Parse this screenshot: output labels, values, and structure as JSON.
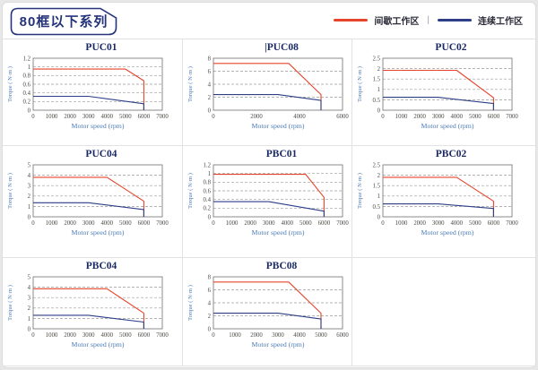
{
  "page": {
    "series_tag": "80框以下系列"
  },
  "legend": {
    "intermittent_label": "间歇工作区",
    "separator": "|",
    "continuous_label": "连续工作区",
    "intermittent_color": "#e5452b",
    "continuous_color": "#2c3f87"
  },
  "chart_data": [
    {
      "type": "line",
      "title": "PUC01",
      "xlabel": "Motor speed (rpm)",
      "ylabel": "Torque ( N·m )",
      "xlim": [
        0,
        7000
      ],
      "ylim": [
        0,
        1.2
      ],
      "xticks": [
        "0",
        "1000",
        "2000",
        "3000",
        "4000",
        "5000",
        "6000",
        "7000"
      ],
      "yticks": [
        "0",
        "0.2",
        "0.4",
        "0.6",
        "0.8",
        "1",
        "1.2"
      ],
      "grid": "dashed-horizontal",
      "legend_position": "none",
      "series": [
        {
          "name": "间歇工作区",
          "color": "#e5452b",
          "points": [
            [
              0,
              0.95
            ],
            [
              5000,
              0.95
            ],
            [
              6000,
              0.68
            ],
            [
              6000,
              0
            ]
          ]
        },
        {
          "name": "连续工作区",
          "color": "#2c3f87",
          "points": [
            [
              0,
              0.32
            ],
            [
              3000,
              0.32
            ],
            [
              6000,
              0.15
            ],
            [
              6000,
              0
            ]
          ]
        }
      ]
    },
    {
      "type": "line",
      "title": "PUC08",
      "cursor_bar": "|",
      "xlabel": "Motor speed (rpm)",
      "ylabel": "Torque ( N·m )",
      "xlim": [
        0,
        6000
      ],
      "ylim": [
        0,
        8
      ],
      "xticks": [
        "0",
        "2000",
        "4000",
        "6000"
      ],
      "yticks": [
        "0",
        "2",
        "4",
        "6",
        "8"
      ],
      "grid": "dashed-horizontal",
      "legend_position": "none",
      "series": [
        {
          "name": "间歇工作区",
          "color": "#e5452b",
          "points": [
            [
              0,
              7.2
            ],
            [
              3500,
              7.2
            ],
            [
              5000,
              2.4
            ],
            [
              5000,
              0
            ]
          ]
        },
        {
          "name": "连续工作区",
          "color": "#2c3f87",
          "points": [
            [
              0,
              2.4
            ],
            [
              3000,
              2.4
            ],
            [
              5000,
              1.5
            ],
            [
              5000,
              0
            ]
          ]
        }
      ]
    },
    {
      "type": "line",
      "title": "PUC02",
      "xlabel": "Motor speed (rpm)",
      "ylabel": "Torque ( N·m )",
      "xlim": [
        0,
        7000
      ],
      "ylim": [
        0,
        2.5
      ],
      "xticks": [
        "0",
        "1000",
        "2000",
        "3000",
        "4000",
        "5000",
        "6000",
        "7000"
      ],
      "yticks": [
        "0",
        "0.5",
        "1",
        "1.5",
        "2",
        "2.5"
      ],
      "grid": "dashed-horizontal",
      "legend_position": "none",
      "series": [
        {
          "name": "间歇工作区",
          "color": "#e5452b",
          "points": [
            [
              0,
              1.92
            ],
            [
              4000,
              1.92
            ],
            [
              6000,
              0.6
            ],
            [
              6000,
              0
            ]
          ]
        },
        {
          "name": "连续工作区",
          "color": "#2c3f87",
          "points": [
            [
              0,
              0.62
            ],
            [
              3000,
              0.62
            ],
            [
              6000,
              0.32
            ],
            [
              6000,
              0
            ]
          ]
        }
      ]
    },
    {
      "type": "line",
      "title": "PUC04",
      "xlabel": "Motor speed (rpm)",
      "ylabel": "Torque ( N·m )",
      "xlim": [
        0,
        7000
      ],
      "ylim": [
        0,
        5
      ],
      "xticks": [
        "0",
        "1000",
        "2000",
        "3000",
        "4000",
        "5000",
        "6000",
        "7000"
      ],
      "yticks": [
        "0",
        "1",
        "2",
        "3",
        "4",
        "5"
      ],
      "grid": "dashed-horizontal",
      "legend_position": "none",
      "series": [
        {
          "name": "间歇工作区",
          "color": "#e5452b",
          "points": [
            [
              0,
              3.8
            ],
            [
              4000,
              3.8
            ],
            [
              6000,
              1.5
            ],
            [
              6000,
              0
            ]
          ]
        },
        {
          "name": "连续工作区",
          "color": "#2c3f87",
          "points": [
            [
              0,
              1.35
            ],
            [
              3000,
              1.35
            ],
            [
              6000,
              0.7
            ],
            [
              6000,
              0
            ]
          ]
        }
      ]
    },
    {
      "type": "line",
      "title": "PBC01",
      "xlabel": "Motor speed (rpm)",
      "ylabel": "Torque ( N·m )",
      "xlim": [
        0,
        7000
      ],
      "ylim": [
        0,
        1.2
      ],
      "xticks": [
        "0",
        "1000",
        "2000",
        "3000",
        "4000",
        "5000",
        "6000",
        "7000"
      ],
      "yticks": [
        "0",
        "0.2",
        "0.4",
        "0.6",
        "0.8",
        "1",
        "1.2"
      ],
      "grid": "dashed-horizontal",
      "legend_position": "none",
      "series": [
        {
          "name": "间歇工作区",
          "color": "#e5452b",
          "points": [
            [
              0,
              0.98
            ],
            [
              5000,
              0.98
            ],
            [
              6000,
              0.45
            ],
            [
              6000,
              0
            ]
          ]
        },
        {
          "name": "连续工作区",
          "color": "#2c3f87",
          "points": [
            [
              0,
              0.35
            ],
            [
              3000,
              0.35
            ],
            [
              6000,
              0.13
            ],
            [
              6000,
              0
            ]
          ]
        }
      ]
    },
    {
      "type": "line",
      "title": "PBC02",
      "xlabel": "Motor speed (rpm)",
      "ylabel": "Torque ( N·m )",
      "xlim": [
        0,
        7000
      ],
      "ylim": [
        0,
        2.5
      ],
      "xticks": [
        "0",
        "1000",
        "2000",
        "3000",
        "4000",
        "5000",
        "6000",
        "7000"
      ],
      "yticks": [
        "0",
        "0.5",
        "1",
        "1.5",
        "2",
        "2.5"
      ],
      "grid": "dashed-horizontal",
      "legend_position": "none",
      "series": [
        {
          "name": "间歇工作区",
          "color": "#e5452b",
          "points": [
            [
              0,
              1.9
            ],
            [
              4000,
              1.9
            ],
            [
              6000,
              0.75
            ],
            [
              6000,
              0
            ]
          ]
        },
        {
          "name": "连续工作区",
          "color": "#2c3f87",
          "points": [
            [
              0,
              0.62
            ],
            [
              3000,
              0.62
            ],
            [
              6000,
              0.4
            ],
            [
              6000,
              0
            ]
          ]
        }
      ]
    },
    {
      "type": "line",
      "title": "PBC04",
      "xlabel": "Motor speed (rpm)",
      "ylabel": "Torque ( N·m )",
      "xlim": [
        0,
        7000
      ],
      "ylim": [
        0,
        5
      ],
      "xticks": [
        "0",
        "1000",
        "2000",
        "3000",
        "4000",
        "5000",
        "6000",
        "7000"
      ],
      "yticks": [
        "0",
        "1",
        "2",
        "3",
        "4",
        "5"
      ],
      "grid": "dashed-horizontal",
      "legend_position": "none",
      "series": [
        {
          "name": "间歇工作区",
          "color": "#e5452b",
          "points": [
            [
              0,
              3.85
            ],
            [
              4000,
              3.85
            ],
            [
              6000,
              1.5
            ],
            [
              6000,
              0
            ]
          ]
        },
        {
          "name": "连续工作区",
          "color": "#2c3f87",
          "points": [
            [
              0,
              1.3
            ],
            [
              3000,
              1.3
            ],
            [
              6000,
              0.65
            ],
            [
              6000,
              0
            ]
          ]
        }
      ]
    },
    {
      "type": "line",
      "title": "PBC08",
      "xlabel": "Motor speed (rpm)",
      "ylabel": "Torque ( N·m )",
      "xlim": [
        0,
        6000
      ],
      "ylim": [
        0,
        8
      ],
      "xticks": [
        "0",
        "1000",
        "2000",
        "3000",
        "4000",
        "5000",
        "6000"
      ],
      "yticks": [
        "0",
        "2",
        "4",
        "6",
        "8"
      ],
      "grid": "dashed-horizontal",
      "legend_position": "none",
      "series": [
        {
          "name": "间歇工作区",
          "color": "#e5452b",
          "points": [
            [
              0,
              7.2
            ],
            [
              3500,
              7.2
            ],
            [
              5000,
              2.4
            ],
            [
              5000,
              0
            ]
          ]
        },
        {
          "name": "连续工作区",
          "color": "#2c3f87",
          "points": [
            [
              0,
              2.4
            ],
            [
              3000,
              2.4
            ],
            [
              5000,
              1.5
            ],
            [
              5000,
              0
            ]
          ]
        }
      ]
    }
  ]
}
